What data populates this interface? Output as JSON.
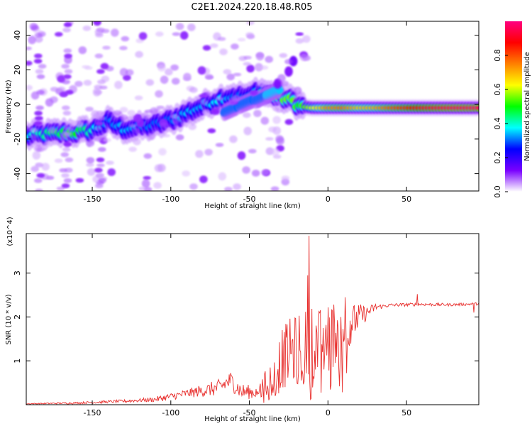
{
  "title": "C2E1.2024.220.18.48.R05",
  "chart_data": [
    {
      "type": "heatmap",
      "name": "spectrogram",
      "xlabel": "Height of straight line (km)",
      "ylabel": "Frequency (Hz)",
      "xlim": [
        -192,
        96
      ],
      "ylim": [
        -50,
        48
      ],
      "xticks": [
        -150,
        -100,
        -50,
        0,
        50
      ],
      "yticks": [
        -40,
        -20,
        0,
        20,
        40
      ],
      "colorbar": {
        "label": "Normalized spectral amplitude",
        "range": [
          0,
          1
        ],
        "ticks": [
          0.0,
          0.2,
          0.4,
          0.6,
          0.8
        ],
        "tick_labels": [
          "0.0",
          "0.2",
          "0.4",
          "0.6",
          "0.8"
        ],
        "colors": [
          "#ffffff",
          "#7a00ff",
          "#0000ff",
          "#00ffff",
          "#00ff00",
          "#ffff00",
          "#ff8000",
          "#ff0000",
          "#ff0080"
        ]
      },
      "ridge": [
        {
          "x": -190,
          "y": -18,
          "amp": 0.38
        },
        {
          "x": -175,
          "y": -17,
          "amp": 0.45
        },
        {
          "x": -160,
          "y": -16,
          "amp": 0.5
        },
        {
          "x": -150,
          "y": -15,
          "amp": 0.4
        },
        {
          "x": -140,
          "y": -10,
          "amp": 0.3
        },
        {
          "x": -130,
          "y": -14,
          "amp": 0.35
        },
        {
          "x": -120,
          "y": -13,
          "amp": 0.32
        },
        {
          "x": -110,
          "y": -12,
          "amp": 0.3
        },
        {
          "x": -100,
          "y": -9,
          "amp": 0.3
        },
        {
          "x": -90,
          "y": -5,
          "amp": 0.35
        },
        {
          "x": -80,
          "y": -1,
          "amp": 0.33
        },
        {
          "x": -70,
          "y": 3,
          "amp": 0.38
        },
        {
          "x": -60,
          "y": 5,
          "amp": 0.3
        },
        {
          "x": -50,
          "y": 4,
          "amp": 0.3
        },
        {
          "x": -45,
          "y": 8,
          "amp": 0.35
        },
        {
          "x": -38,
          "y": 6,
          "amp": 0.5
        },
        {
          "x": -30,
          "y": 4,
          "amp": 0.55
        },
        {
          "x": -22,
          "y": 2,
          "amp": 0.55
        },
        {
          "x": -18,
          "y": -1,
          "amp": 0.5
        },
        {
          "x": -10,
          "y": -2,
          "amp": 0.6
        },
        {
          "x": 0,
          "y": -2,
          "amp": 0.75
        },
        {
          "x": 10,
          "y": -2,
          "amp": 0.78
        },
        {
          "x": 20,
          "y": -2,
          "amp": 0.7
        },
        {
          "x": 30,
          "y": -2,
          "amp": 0.72
        },
        {
          "x": 40,
          "y": -2,
          "amp": 0.8
        },
        {
          "x": 50,
          "y": -2,
          "amp": 0.85
        },
        {
          "x": 60,
          "y": -2,
          "amp": 0.92
        },
        {
          "x": 70,
          "y": -2,
          "amp": 0.95
        },
        {
          "x": 80,
          "y": -2,
          "amp": 0.97
        },
        {
          "x": 96,
          "y": -2,
          "amp": 0.98
        }
      ],
      "secondary_ridge": [
        {
          "x": -62,
          "y": -3,
          "amp": 0.3
        },
        {
          "x": -52,
          "y": 1,
          "amp": 0.3
        },
        {
          "x": -42,
          "y": 4,
          "amp": 0.3
        },
        {
          "x": -35,
          "y": 7,
          "amp": 0.35
        }
      ],
      "upper_streak": [
        {
          "x": -32,
          "y": 12,
          "amp": 0.12
        },
        {
          "x": -25,
          "y": 19,
          "amp": 0.12
        },
        {
          "x": -22,
          "y": 25,
          "amp": 0.14
        }
      ]
    },
    {
      "type": "line",
      "name": "snr",
      "xlabel": "Height of straight line (km)",
      "ylabel": "SNR (10 * v/v)",
      "scale_label": "(x10^4)",
      "xlim": [
        -192,
        96
      ],
      "ylim": [
        0,
        3.9
      ],
      "xticks": [
        -150,
        -100,
        -50,
        0,
        50
      ],
      "yticks": [
        1,
        2,
        3
      ],
      "color": "#e8302e",
      "envelope": [
        {
          "x": -192,
          "y": 0.02
        },
        {
          "x": -160,
          "y": 0.04
        },
        {
          "x": -130,
          "y": 0.08
        },
        {
          "x": -110,
          "y": 0.12
        },
        {
          "x": -95,
          "y": 0.22
        },
        {
          "x": -80,
          "y": 0.32
        },
        {
          "x": -70,
          "y": 0.38
        },
        {
          "x": -62,
          "y": 0.55
        },
        {
          "x": -55,
          "y": 0.3
        },
        {
          "x": -45,
          "y": 0.28
        },
        {
          "x": -35,
          "y": 0.6
        },
        {
          "x": -30,
          "y": 1.0
        },
        {
          "x": -25,
          "y": 1.2
        },
        {
          "x": -20,
          "y": 1.25
        },
        {
          "x": -15,
          "y": 1.3
        },
        {
          "x": -10,
          "y": 1.45
        },
        {
          "x": -5,
          "y": 1.35
        },
        {
          "x": 0,
          "y": 1.5
        },
        {
          "x": 5,
          "y": 1.65
        },
        {
          "x": 10,
          "y": 1.75
        },
        {
          "x": 15,
          "y": 1.85
        },
        {
          "x": 20,
          "y": 2.0
        },
        {
          "x": 25,
          "y": 2.1
        },
        {
          "x": 30,
          "y": 2.22
        },
        {
          "x": 40,
          "y": 2.27
        },
        {
          "x": 50,
          "y": 2.28
        },
        {
          "x": 60,
          "y": 2.29
        },
        {
          "x": 70,
          "y": 2.28
        },
        {
          "x": 80,
          "y": 2.28
        },
        {
          "x": 96,
          "y": 2.3
        }
      ],
      "spikes": [
        {
          "x": -12,
          "y": 3.85
        },
        {
          "x": -13,
          "y": 2.95
        },
        {
          "x": 11,
          "y": 2.45
        },
        {
          "x": 57,
          "y": 2.52
        },
        {
          "x": 12,
          "y": 0.72
        },
        {
          "x": -11,
          "y": 0.12
        },
        {
          "x": 93,
          "y": 2.1
        }
      ],
      "noise": [
        {
          "x": -192,
          "y": 0.01
        },
        {
          "x": -120,
          "y": 0.04
        },
        {
          "x": -90,
          "y": 0.1
        },
        {
          "x": -62,
          "y": 0.22
        },
        {
          "x": -45,
          "y": 0.14
        },
        {
          "x": -30,
          "y": 0.7
        },
        {
          "x": -10,
          "y": 0.9
        },
        {
          "x": 5,
          "y": 0.75
        },
        {
          "x": 15,
          "y": 0.45
        },
        {
          "x": 25,
          "y": 0.15
        },
        {
          "x": 35,
          "y": 0.04
        },
        {
          "x": 96,
          "y": 0.03
        }
      ]
    }
  ]
}
